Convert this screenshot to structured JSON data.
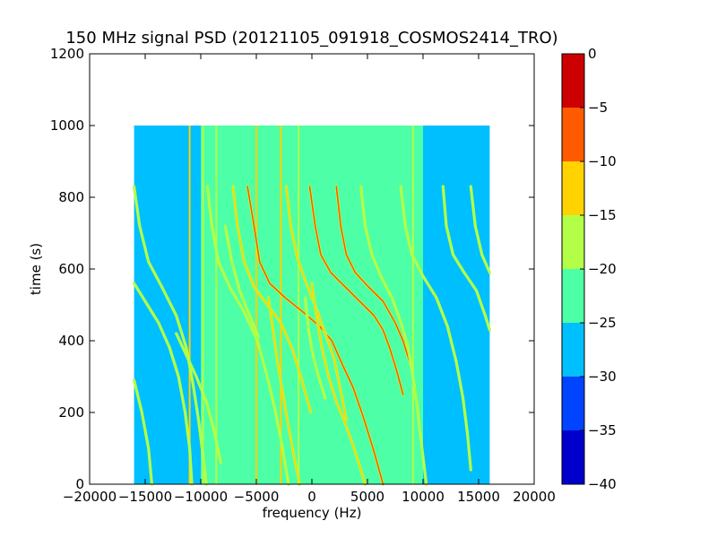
{
  "chart_data": {
    "type": "heatmap",
    "title": "150 MHz signal PSD (20121105_091918_COSMOS2414_TRO)",
    "xlabel": "frequency (Hz)",
    "ylabel": "time (s)",
    "xlim": [
      -20000,
      20000
    ],
    "ylim": [
      0,
      1200
    ],
    "x_ticks": [
      -20000,
      -15000,
      -10000,
      -5000,
      0,
      5000,
      10000,
      15000,
      20000
    ],
    "x_tick_labels": [
      "−20000",
      "−15000",
      "−10000",
      "−5000",
      "0",
      "5000",
      "10000",
      "15000",
      "20000"
    ],
    "y_ticks": [
      0,
      200,
      400,
      600,
      800,
      1000,
      1200
    ],
    "y_tick_labels": [
      "0",
      "200",
      "400",
      "600",
      "800",
      "1000",
      "1200"
    ],
    "data_extent": {
      "x": [
        -16000,
        16000
      ],
      "y": [
        0,
        1000
      ]
    },
    "background_bands": [
      {
        "x": [
          -16000,
          -10000
        ],
        "level": -27.5
      },
      {
        "x": [
          -10000,
          10000
        ],
        "level": -22.5
      },
      {
        "x": [
          10000,
          16000
        ],
        "level": -27.5
      }
    ],
    "vertical_lines": [
      {
        "x": -11000,
        "level": -12.5
      },
      {
        "x": -9800,
        "level": -17.5
      },
      {
        "x": -9400,
        "level": -22.5
      },
      {
        "x": -8600,
        "level": -17.5
      },
      {
        "x": -5000,
        "level": -12.5
      },
      {
        "x": -2800,
        "level": -12.5
      },
      {
        "x": -1200,
        "level": -17.5
      },
      {
        "x": 9100,
        "level": -17.5
      },
      {
        "x": 9900,
        "level": -22.5
      }
    ],
    "traces": [
      {
        "points": [
          [
            -5800,
            830
          ],
          [
            -5200,
            720
          ],
          [
            -4700,
            620
          ],
          [
            -3800,
            560
          ],
          [
            -2400,
            520
          ],
          [
            -800,
            480
          ],
          [
            700,
            440
          ],
          [
            1800,
            400
          ],
          [
            2800,
            330
          ],
          [
            3700,
            270
          ],
          [
            4600,
            190
          ],
          [
            5600,
            90
          ],
          [
            6400,
            0
          ]
        ],
        "level": -7.5
      },
      {
        "points": [
          [
            -200,
            830
          ],
          [
            300,
            720
          ],
          [
            800,
            640
          ],
          [
            1700,
            590
          ],
          [
            3000,
            550
          ],
          [
            4300,
            510
          ],
          [
            5600,
            470
          ],
          [
            6400,
            430
          ],
          [
            7000,
            380
          ],
          [
            7600,
            320
          ],
          [
            8200,
            250
          ]
        ],
        "level": -7.5
      },
      {
        "points": [
          [
            2200,
            830
          ],
          [
            2600,
            720
          ],
          [
            3100,
            640
          ],
          [
            3900,
            590
          ],
          [
            5100,
            550
          ],
          [
            6400,
            510
          ],
          [
            7500,
            450
          ],
          [
            8200,
            400
          ],
          [
            8800,
            340
          ]
        ],
        "level": -7.5
      },
      {
        "points": [
          [
            -2300,
            830
          ],
          [
            -1900,
            720
          ],
          [
            -1300,
            630
          ],
          [
            -500,
            560
          ],
          [
            400,
            490
          ],
          [
            1200,
            420
          ],
          [
            2000,
            350
          ],
          [
            2600,
            260
          ],
          [
            3100,
            180
          ]
        ],
        "level": -12.5
      },
      {
        "points": [
          [
            -7100,
            830
          ],
          [
            -6700,
            720
          ],
          [
            -6100,
            620
          ],
          [
            -5200,
            550
          ],
          [
            -4000,
            500
          ],
          [
            -2800,
            450
          ],
          [
            -1800,
            380
          ],
          [
            -900,
            290
          ],
          [
            -100,
            200
          ]
        ],
        "level": -12.5
      },
      {
        "points": [
          [
            -9400,
            830
          ],
          [
            -9000,
            720
          ],
          [
            -8400,
            620
          ],
          [
            -7400,
            550
          ],
          [
            -6100,
            480
          ],
          [
            -4900,
            400
          ],
          [
            -4100,
            310
          ],
          [
            -3400,
            220
          ],
          [
            -2700,
            110
          ],
          [
            -2100,
            0
          ]
        ],
        "level": -17.5
      },
      {
        "points": [
          [
            4400,
            830
          ],
          [
            4800,
            720
          ],
          [
            5400,
            640
          ],
          [
            6200,
            580
          ],
          [
            7200,
            520
          ],
          [
            7900,
            460
          ],
          [
            8600,
            390
          ],
          [
            9100,
            300
          ],
          [
            9500,
            210
          ],
          [
            9900,
            100
          ],
          [
            10300,
            0
          ]
        ],
        "level": -17.5
      },
      {
        "points": [
          [
            -16000,
            830
          ],
          [
            -15500,
            720
          ],
          [
            -14700,
            620
          ],
          [
            -13500,
            550
          ],
          [
            -12200,
            470
          ],
          [
            -11300,
            380
          ],
          [
            -10700,
            280
          ],
          [
            -10200,
            180
          ],
          [
            -9800,
            80
          ],
          [
            -9500,
            0
          ]
        ],
        "level": -17.5
      },
      {
        "points": [
          [
            -16000,
            560
          ],
          [
            -15000,
            510
          ],
          [
            -13800,
            450
          ],
          [
            -12800,
            380
          ],
          [
            -12000,
            300
          ],
          [
            -11400,
            200
          ],
          [
            -11000,
            100
          ],
          [
            -10800,
            0
          ]
        ],
        "level": -17.5
      },
      {
        "points": [
          [
            -16000,
            290
          ],
          [
            -15300,
            200
          ],
          [
            -14700,
            100
          ],
          [
            -14400,
            0
          ]
        ],
        "level": -17.5
      },
      {
        "points": [
          [
            8000,
            830
          ],
          [
            8400,
            720
          ],
          [
            9000,
            640
          ],
          [
            10000,
            580
          ],
          [
            11200,
            520
          ],
          [
            12200,
            440
          ],
          [
            13000,
            340
          ],
          [
            13600,
            240
          ],
          [
            14000,
            140
          ],
          [
            14300,
            40
          ]
        ],
        "level": -17.5
      },
      {
        "points": [
          [
            11800,
            830
          ],
          [
            12100,
            720
          ],
          [
            12700,
            640
          ],
          [
            13700,
            590
          ],
          [
            14800,
            540
          ],
          [
            15600,
            470
          ],
          [
            16000,
            430
          ]
        ],
        "level": -17.5
      },
      {
        "points": [
          [
            14300,
            830
          ],
          [
            14700,
            720
          ],
          [
            15300,
            640
          ],
          [
            16000,
            590
          ]
        ],
        "level": -17.5
      },
      {
        "points": [
          [
            -3900,
            520
          ],
          [
            -3500,
            430
          ],
          [
            -3100,
            340
          ],
          [
            -2600,
            250
          ],
          [
            -2100,
            160
          ],
          [
            -1500,
            60
          ],
          [
            -1100,
            0
          ]
        ],
        "level": -12.5
      },
      {
        "points": [
          [
            0,
            560
          ],
          [
            400,
            470
          ],
          [
            900,
            380
          ],
          [
            1500,
            300
          ],
          [
            2200,
            230
          ],
          [
            3000,
            170
          ],
          [
            3800,
            100
          ],
          [
            4800,
            0
          ]
        ],
        "level": -12.5
      },
      {
        "points": [
          [
            -600,
            520
          ],
          [
            -300,
            430
          ],
          [
            100,
            360
          ],
          [
            600,
            300
          ],
          [
            1200,
            240
          ]
        ],
        "level": -17.5
      },
      {
        "points": [
          [
            -7800,
            720
          ],
          [
            -7200,
            620
          ],
          [
            -6500,
            540
          ],
          [
            -5600,
            470
          ],
          [
            -4800,
            410
          ]
        ],
        "level": -17.5
      },
      {
        "points": [
          [
            -12200,
            420
          ],
          [
            -11300,
            360
          ],
          [
            -10400,
            300
          ],
          [
            -9500,
            230
          ],
          [
            -8800,
            150
          ],
          [
            -8200,
            60
          ]
        ],
        "level": -17.5
      }
    ],
    "colorbar": {
      "ticks": [
        0,
        -5,
        -10,
        -15,
        -20,
        -25,
        -30,
        -35,
        -40
      ],
      "tick_labels": [
        "0",
        "−5",
        "−10",
        "−15",
        "−20",
        "−25",
        "−30",
        "−35",
        "−40"
      ],
      "levels": [
        {
          "range": [
            -40,
            -35
          ],
          "color": "#0000cc"
        },
        {
          "range": [
            -35,
            -30
          ],
          "color": "#0044ff"
        },
        {
          "range": [
            -30,
            -25
          ],
          "color": "#00bfff"
        },
        {
          "range": [
            -25,
            -20
          ],
          "color": "#4dffa6"
        },
        {
          "range": [
            -20,
            -15
          ],
          "color": "#b3ff47"
        },
        {
          "range": [
            -15,
            -10
          ],
          "color": "#ffd200"
        },
        {
          "range": [
            -10,
            -5
          ],
          "color": "#ff5a00"
        },
        {
          "range": [
            -5,
            0
          ],
          "color": "#cc0000"
        }
      ]
    }
  }
}
